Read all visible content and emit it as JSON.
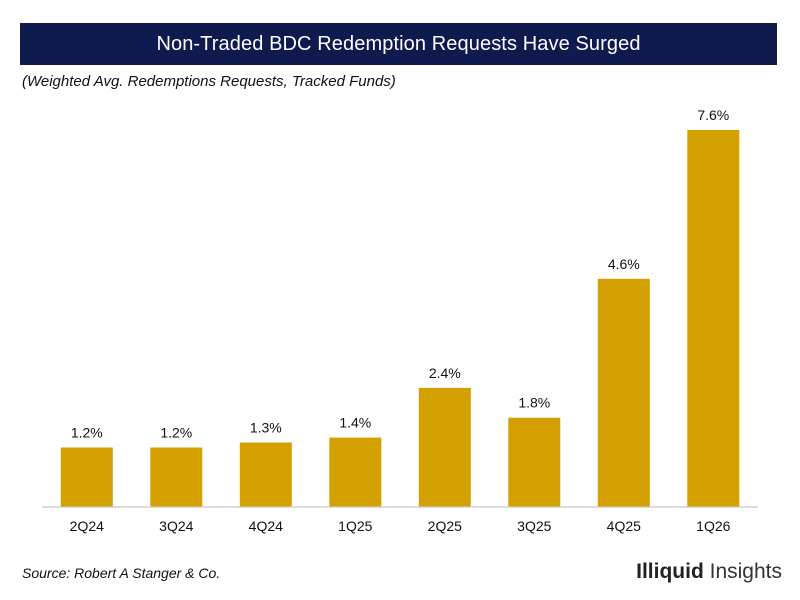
{
  "header": {
    "title": "Non-Traded BDC Redemption Requests Have Surged",
    "subtitle": "(Weighted Avg. Redemptions Requests, Tracked Funds)"
  },
  "chart_data": {
    "type": "bar",
    "title": "Non-Traded BDC Redemption Requests Have Surged",
    "subtitle": "(Weighted Avg. Redemptions Requests, Tracked Funds)",
    "xlabel": "",
    "ylabel": "",
    "categories": [
      "2Q24",
      "3Q24",
      "4Q24",
      "1Q25",
      "2Q25",
      "3Q25",
      "4Q25",
      "1Q26"
    ],
    "values": [
      1.2,
      1.2,
      1.3,
      1.4,
      2.4,
      1.8,
      4.6,
      7.6
    ],
    "value_labels": [
      "1.2%",
      "1.2%",
      "1.3%",
      "1.4%",
      "2.4%",
      "1.8%",
      "4.6%",
      "7.6%"
    ],
    "unit": "%",
    "ylim": [
      0,
      7.6
    ],
    "grid": false,
    "bar_color": "#d4a000",
    "axis_color": "#c8c8c8"
  },
  "footer": {
    "source": "Source: Robert A Stanger & Co.",
    "brand_strong": "Illiquid",
    "brand_light": " Insights"
  },
  "colors": {
    "header_bg": "#0f1a4e",
    "header_text": "#ffffff",
    "bar": "#d4a000"
  }
}
